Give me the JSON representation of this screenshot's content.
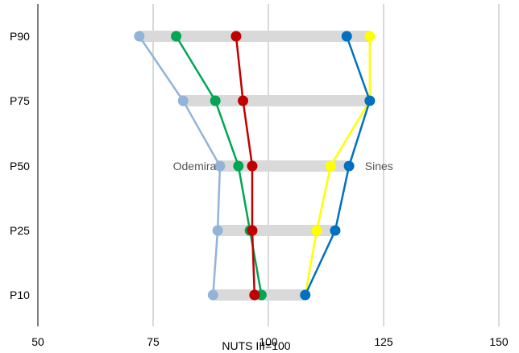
{
  "chart_data": {
    "type": "line",
    "title": "",
    "xlabel": "NUTS III=100",
    "ylabel": "",
    "xlim": [
      50,
      150
    ],
    "x_ticks": [
      50,
      75,
      100,
      125,
      150
    ],
    "categories": [
      "P10",
      "P25",
      "P50",
      "P75",
      "P90"
    ],
    "grid": true,
    "legend": "none",
    "range_bars": [
      {
        "category": "P10",
        "min": 88,
        "max": 108
      },
      {
        "category": "P25",
        "min": 89,
        "max": 114
      },
      {
        "category": "P50",
        "min": 89,
        "max": 117
      },
      {
        "category": "P75",
        "min": 81,
        "max": 122
      },
      {
        "category": "P90",
        "min": 72,
        "max": 122
      }
    ],
    "series": [
      {
        "color": "#92b4d9",
        "values": [
          88,
          89,
          89.5,
          81.5,
          72
        ]
      },
      {
        "color": "#00a651",
        "values": [
          98.5,
          96,
          93.5,
          88.5,
          80
        ]
      },
      {
        "color": "#c00000",
        "values": [
          97,
          96.5,
          96.5,
          94.5,
          93
        ]
      },
      {
        "color": "#ffff00",
        "values": [
          108,
          110.5,
          113.5,
          122,
          122
        ]
      },
      {
        "color": "#0070c0",
        "values": [
          108,
          114.5,
          117.5,
          122,
          117
        ]
      }
    ],
    "annotations": [
      {
        "text": "Odemira",
        "x": 84,
        "category": "P50"
      },
      {
        "text": "Sines",
        "x": 124,
        "category": "P50"
      }
    ]
  }
}
